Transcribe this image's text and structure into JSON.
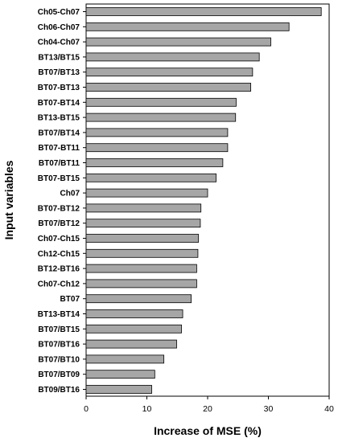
{
  "chart_data": {
    "type": "bar",
    "orientation": "horizontal",
    "categories": [
      "Ch05-Ch07",
      "Ch06-Ch07",
      "Ch04-Ch07",
      "BT13/BT15",
      "BT07/BT13",
      "BT07-BT13",
      "BT07-BT14",
      "BT13-BT15",
      "BT07/BT14",
      "BT07-BT11",
      "BT07/BT11",
      "BT07-BT15",
      "Ch07",
      "BT07-BT12",
      "BT07/BT12",
      "Ch07-Ch15",
      "Ch12-Ch15",
      "BT12-BT16",
      "Ch07-Ch12",
      "BT07",
      "BT13-BT14",
      "BT07/BT15",
      "BT07/BT16",
      "BT07/BT10",
      "BT07/BT09",
      "BT09/BT16"
    ],
    "values": [
      38.7,
      33.4,
      30.4,
      28.5,
      27.4,
      27.1,
      24.7,
      24.6,
      23.3,
      23.3,
      22.5,
      21.4,
      20.0,
      18.9,
      18.8,
      18.5,
      18.4,
      18.2,
      18.2,
      17.3,
      15.9,
      15.7,
      14.9,
      12.8,
      11.3,
      10.8
    ],
    "xlabel": "Increase of MSE (%)",
    "ylabel": "Input variables",
    "xlim": [
      0,
      40
    ],
    "xticks": [
      "0",
      "10",
      "20",
      "30",
      "40"
    ],
    "grid": false,
    "colors": {
      "bar_fill": "#a6a6a6",
      "bar_stroke": "#000000",
      "axis": "#000000"
    }
  }
}
